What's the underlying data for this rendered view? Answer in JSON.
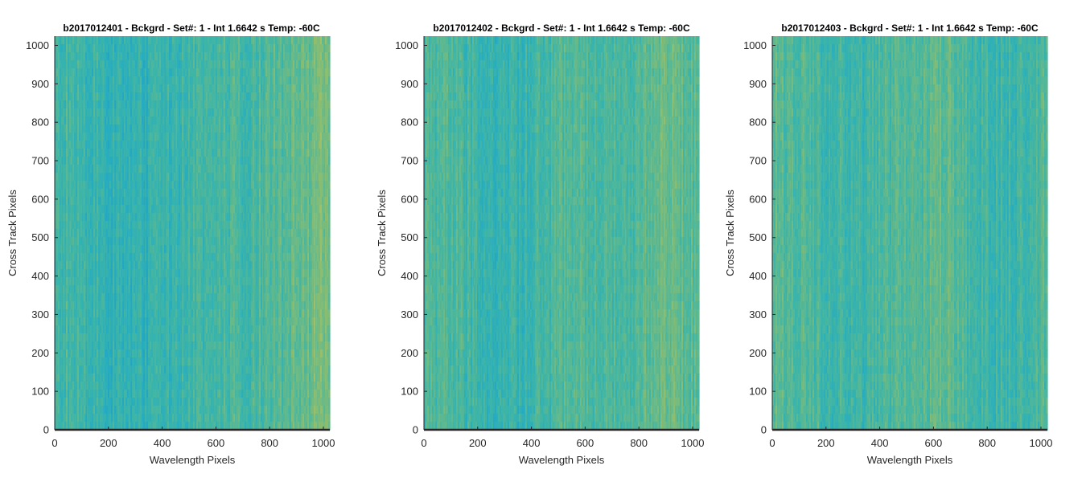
{
  "figure": {
    "background": "#ffffff"
  },
  "chart_data": [
    {
      "type": "heatmap",
      "title": "b2017012401 - Bckgrd - Set#: 1 - Int 1.6642 s Temp: -60C",
      "xlabel": "Wavelength Pixels",
      "ylabel": "Cross Track Pixels",
      "xlim": [
        0,
        1024
      ],
      "ylim": [
        0,
        1024
      ],
      "xticks": [
        0,
        200,
        400,
        600,
        800,
        1000
      ],
      "yticks": [
        0,
        100,
        200,
        300,
        400,
        500,
        600,
        700,
        800,
        900,
        1000
      ],
      "colormap": [
        "#1f9fc6",
        "#27adc0",
        "#3db5a8",
        "#62b98d",
        "#8bbd70",
        "#b3c05f"
      ],
      "column_profile": [
        0.46,
        0.44,
        0.38,
        0.32,
        0.3,
        0.3,
        0.33,
        0.36,
        0.39,
        0.42,
        0.44,
        0.47,
        0.5,
        0.53,
        0.58,
        0.66,
        0.71
      ],
      "grid": false
    },
    {
      "type": "heatmap",
      "title": "b2017012402 - Bckgrd - Set#: 1 - Int 1.6642 s Temp: -60C",
      "xlabel": "Wavelength Pixels",
      "ylabel": "Cross Track Pixels",
      "xlim": [
        0,
        1024
      ],
      "ylim": [
        0,
        1024
      ],
      "xticks": [
        0,
        200,
        400,
        600,
        800,
        1000
      ],
      "yticks": [
        0,
        100,
        200,
        300,
        400,
        500,
        600,
        700,
        800,
        900,
        1000
      ],
      "colormap": [
        "#1f9fc6",
        "#27adc0",
        "#3db5a8",
        "#62b98d",
        "#8bbd70",
        "#b3c05f"
      ],
      "column_profile": [
        0.5,
        0.5,
        0.45,
        0.4,
        0.36,
        0.34,
        0.37,
        0.44,
        0.5,
        0.52,
        0.5,
        0.46,
        0.45,
        0.6,
        0.65,
        0.58,
        0.55
      ],
      "grid": false
    },
    {
      "type": "heatmap",
      "title": "b2017012403 - Bckgrd - Set#: 1 - Int 1.6642 s Temp: -60C",
      "xlabel": "Wavelength Pixels",
      "ylabel": "Cross Track Pixels",
      "xlim": [
        0,
        1024
      ],
      "ylim": [
        0,
        1024
      ],
      "xticks": [
        0,
        200,
        400,
        600,
        800,
        1000
      ],
      "yticks": [
        0,
        100,
        200,
        300,
        400,
        500,
        600,
        700,
        800,
        900,
        1000
      ],
      "colormap": [
        "#1f9fc6",
        "#27adc0",
        "#3db5a8",
        "#62b98d",
        "#8bbd70",
        "#b3c05f"
      ],
      "column_profile": [
        0.56,
        0.54,
        0.5,
        0.46,
        0.42,
        0.4,
        0.44,
        0.48,
        0.52,
        0.56,
        0.58,
        0.52,
        0.4,
        0.38,
        0.4,
        0.46,
        0.5
      ],
      "grid": false
    }
  ]
}
